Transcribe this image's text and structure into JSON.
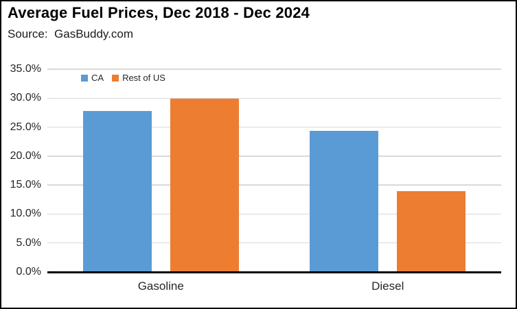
{
  "header": {
    "title": "Average Fuel Prices, Dec 2018 - Dec 2024",
    "source": "Source:  GasBuddy.com"
  },
  "chart_data": {
    "type": "bar",
    "title": "Average Fuel Prices, Dec 2018 - Dec 2024",
    "source": "GasBuddy.com",
    "categories": [
      "Gasoline",
      "Diesel"
    ],
    "series": [
      {
        "name": "CA",
        "color": "#5B9BD5",
        "values": [
          27.8,
          24.4
        ]
      },
      {
        "name": "Rest of US",
        "color": "#ED7D31",
        "values": [
          29.9,
          13.9
        ]
      }
    ],
    "xlabel": "",
    "ylabel": "",
    "ylim": [
      0,
      35
    ],
    "ytick_step": 5,
    "ytick_labels": [
      "0.0%",
      "5.0%",
      "10.0%",
      "15.0%",
      "20.0%",
      "25.0%",
      "30.0%",
      "35.0%"
    ],
    "grid": true,
    "gridline_color": "#D9D9D9",
    "axis_line_color": "#000000",
    "legend_position": "inside-top-left",
    "legend_entries": [
      "CA",
      "Rest of US"
    ]
  }
}
